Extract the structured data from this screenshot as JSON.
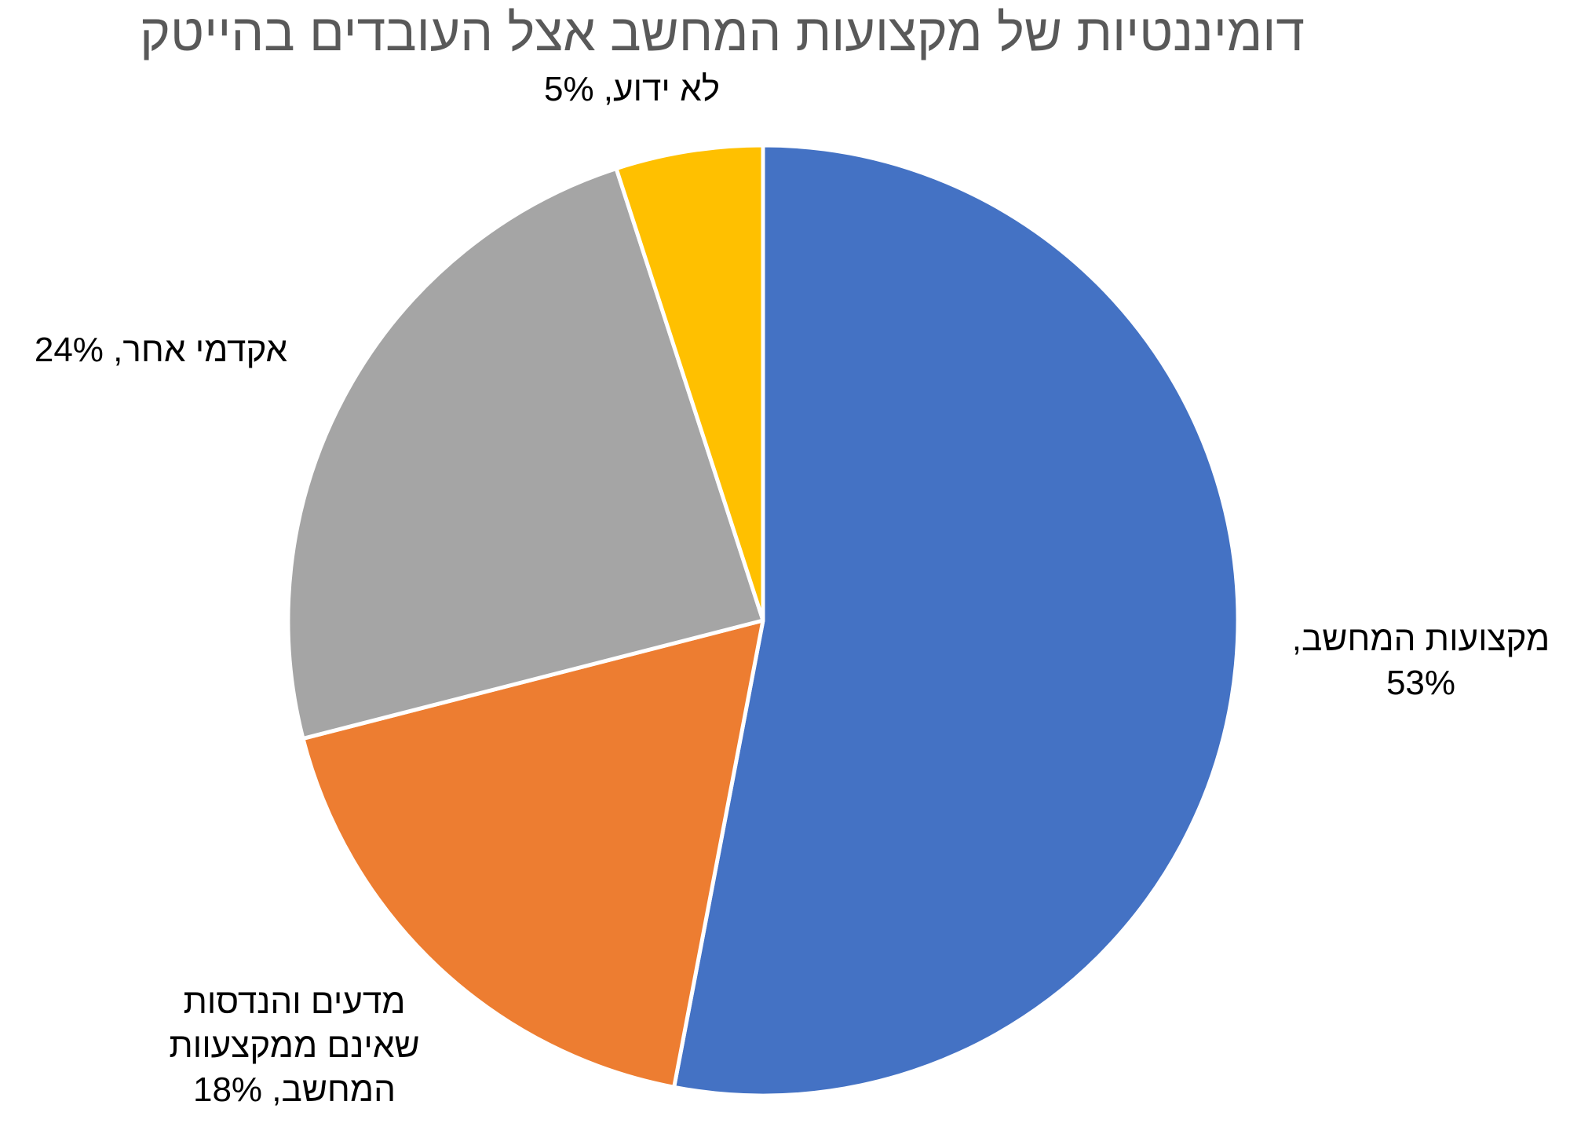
{
  "chart_data": {
    "type": "pie",
    "title": "דומיננטיות של מקצועות המחשב אצל העובדים בהייטק",
    "slices": [
      {
        "label": "מקצועות המחשב",
        "value": 53,
        "display": "53%",
        "color": "#4472C4"
      },
      {
        "label": "מדעים והנדסות שאינם ממקצעוות המחשב",
        "value": 18,
        "display": "18%",
        "color": "#ED7D31"
      },
      {
        "label": "אקדמי אחר",
        "value": 24,
        "display": "24%",
        "color": "#A5A5A5"
      },
      {
        "label": "לא ידוע",
        "value": 5,
        "display": "5%",
        "color": "#FFC000"
      }
    ],
    "data_labels": [
      {
        "lines": [
          "מקצועות המחשב,",
          "53%"
        ]
      },
      {
        "lines": [
          "מדעים והנדסות",
          "שאינם ממקצעוות",
          "המחשב, 18%"
        ]
      },
      {
        "lines": [
          "אקדמי אחר, 24%"
        ]
      },
      {
        "lines": [
          "לא ידוע, 5%"
        ]
      }
    ],
    "legend": "none"
  }
}
